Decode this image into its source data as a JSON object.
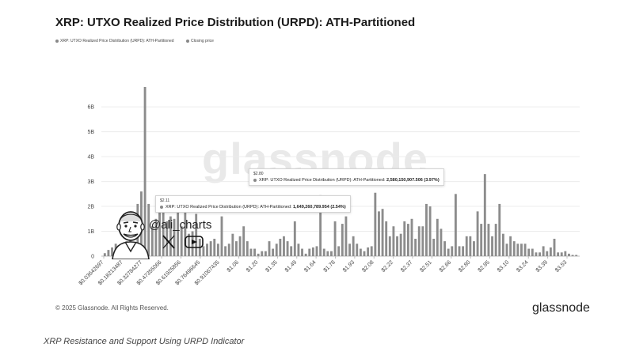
{
  "title": "XRP: UTXO Realized Price Distribution (URPD): ATH-Partitioned",
  "legend": [
    {
      "label": "XRP: UTXO Realized Price Distribution (URPD): ATH-Partitioned",
      "color": "#8c8c8c"
    },
    {
      "label": "Closing price",
      "color": "#8c8c8c"
    }
  ],
  "watermark": "glassnode",
  "tooltips": [
    {
      "price": "$2.80",
      "series": "XRP: UTXO Realized Price Distribution (URPD): ATH-Partitioned:",
      "value": "2,580,150,907.506 (3.97%)"
    },
    {
      "price": "$2.11",
      "series": "XRP: UTXO Realized Price Distribution (URPD): ATH-Partitioned:",
      "value": "1,649,260,789.954 (2.54%)"
    }
  ],
  "credit": {
    "handle": "@ali_charts",
    "icons": [
      "person-caricature-icon",
      "x-logo-icon",
      "youtube-icon"
    ]
  },
  "footer": {
    "copyright": "© 2025 Glassnode. All Rights Reserved.",
    "brand": "glassnode"
  },
  "caption": "XRP Resistance and Support Using URPD Indicator",
  "chart_data": {
    "type": "bar",
    "ylim": [
      0,
      6800000000
    ],
    "yticks": [
      {
        "value": 0,
        "label": "0"
      },
      {
        "value": 1000000000,
        "label": "1B"
      },
      {
        "value": 2000000000,
        "label": "2B"
      },
      {
        "value": 3000000000,
        "label": "3B"
      },
      {
        "value": 4000000000,
        "label": "4B"
      },
      {
        "value": 5000000000,
        "label": "5B"
      },
      {
        "value": 6000000000,
        "label": "6B"
      }
    ],
    "xtick_labels": [
      "$0.03642697",
      "$0.18213487",
      "$0.32784277",
      "$0.47355066",
      "$0.61925856",
      "$0.76496645",
      "$0.91067435",
      "$1.06",
      "$1.20",
      "$1.35",
      "$1.49",
      "$1.64",
      "$1.78",
      "$1.93",
      "$2.08",
      "$2.22",
      "$2.37",
      "$2.51",
      "$2.66",
      "$2.80",
      "$2.95",
      "$3.10",
      "$3.24",
      "$3.39",
      "$3.53"
    ],
    "bar_color": "#8c8c8c",
    "values_billions": [
      0.12,
      0.25,
      0.35,
      0.5,
      0.4,
      0.3,
      0.6,
      0.9,
      0.5,
      2.1,
      2.6,
      6.8,
      2.1,
      1.2,
      1.5,
      1.8,
      2.3,
      1.4,
      1.6,
      1.5,
      1.9,
      1.2,
      2.2,
      0.9,
      1.0,
      1.7,
      0.7,
      0.4,
      0.5,
      0.6,
      0.7,
      0.5,
      1.6,
      0.4,
      0.5,
      0.9,
      0.6,
      0.8,
      1.2,
      0.6,
      0.3,
      0.3,
      0.1,
      0.2,
      0.2,
      0.6,
      0.3,
      0.5,
      0.7,
      0.8,
      0.6,
      0.4,
      1.4,
      0.5,
      0.3,
      0.1,
      0.3,
      0.35,
      0.4,
      2.45,
      0.3,
      0.2,
      0.2,
      1.4,
      0.4,
      1.3,
      1.6,
      0.5,
      0.8,
      0.5,
      0.3,
      0.2,
      0.35,
      0.4,
      2.55,
      1.8,
      1.9,
      1.4,
      0.8,
      1.2,
      0.8,
      0.9,
      1.4,
      1.3,
      1.5,
      0.7,
      1.2,
      1.2,
      2.1,
      2.0,
      0.7,
      1.5,
      1.1,
      0.6,
      0.3,
      0.4,
      2.5,
      0.4,
      0.4,
      0.8,
      0.8,
      0.6,
      1.8,
      1.3,
      3.3,
      1.3,
      0.8,
      1.3,
      2.1,
      0.9,
      0.5,
      0.8,
      0.6,
      0.5,
      0.5,
      0.5,
      0.3,
      0.3,
      0.15,
      0.15,
      0.4,
      0.2,
      0.35,
      0.7,
      0.15,
      0.15,
      0.2,
      0.1,
      0.05,
      0.05
    ]
  }
}
